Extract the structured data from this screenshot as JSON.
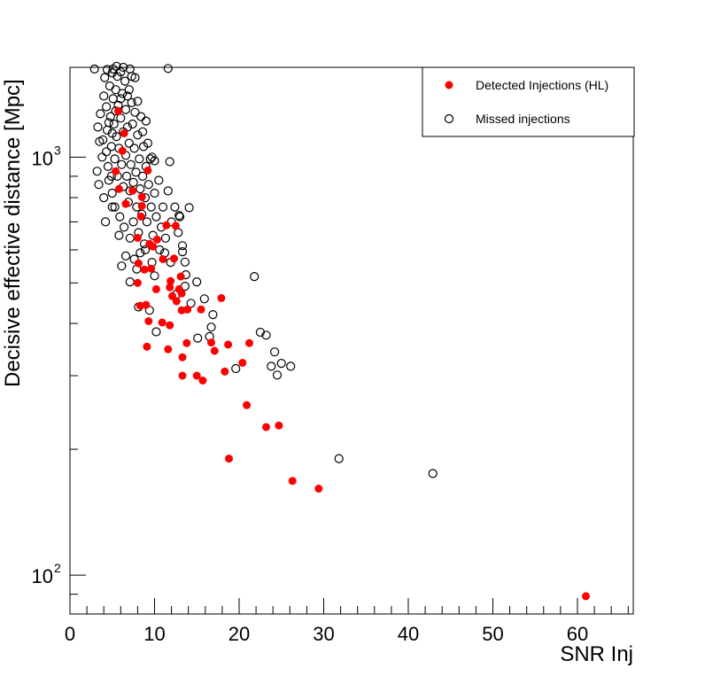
{
  "chart_data": {
    "type": "scatter",
    "title": "",
    "xlabel": "SNR Inj",
    "ylabel": "Decisive effective distance [Mpc]",
    "xlim": [
      0,
      66.6
    ],
    "ylim": [
      80.7,
      1640
    ],
    "yscale": "log",
    "grid": false,
    "legend_position": "top-right",
    "x_ticks": [
      "0",
      "10",
      "20",
      "30",
      "40",
      "50",
      "60"
    ],
    "x_tick_values": [
      0,
      10,
      20,
      30,
      40,
      50,
      60
    ],
    "y_ticks": [
      {
        "base": "10",
        "exp": "2",
        "value": 100
      },
      {
        "base": "10",
        "exp": "3",
        "value": 1000
      }
    ],
    "series": [
      {
        "name": "Detected Injections (HL)",
        "marker": "filled-circle",
        "color": "#ff0000",
        "points": [
          [
            61,
            89
          ],
          [
            29.4,
            161
          ],
          [
            26.3,
            168
          ],
          [
            18.8,
            190
          ],
          [
            23.2,
            226
          ],
          [
            24.7,
            228
          ],
          [
            20.9,
            255
          ],
          [
            18.3,
            307
          ],
          [
            20.4,
            322
          ],
          [
            15.7,
            292
          ],
          [
            15.0,
            300
          ],
          [
            13.3,
            300
          ],
          [
            13.3,
            332
          ],
          [
            11.6,
            347
          ],
          [
            9.1,
            352
          ],
          [
            13.8,
            359
          ],
          [
            17.1,
            344
          ],
          [
            18.7,
            356
          ],
          [
            21.2,
            359
          ],
          [
            16.7,
            360
          ],
          [
            10.9,
            402
          ],
          [
            11.8,
            396
          ],
          [
            9.3,
            405
          ],
          [
            13.9,
            432
          ],
          [
            15.5,
            432
          ],
          [
            13.2,
            430
          ],
          [
            17.9,
            460
          ],
          [
            12.6,
            452
          ],
          [
            9.0,
            443
          ],
          [
            8.3,
            441
          ],
          [
            13.2,
            472
          ],
          [
            12.9,
            483
          ],
          [
            10.2,
            483
          ],
          [
            11.8,
            488
          ],
          [
            13.1,
            518
          ],
          [
            8.0,
            500
          ],
          [
            9.6,
            541
          ],
          [
            11.0,
            570
          ],
          [
            12.3,
            572
          ],
          [
            8.1,
            557
          ],
          [
            8.8,
            538
          ],
          [
            9.8,
            611
          ],
          [
            10.3,
            635
          ],
          [
            9.4,
            620
          ],
          [
            11.4,
            687
          ],
          [
            12.5,
            685
          ],
          [
            8.0,
            641
          ],
          [
            8.4,
            721
          ],
          [
            6.6,
            773
          ],
          [
            8.5,
            764
          ],
          [
            5.4,
            925
          ],
          [
            5.8,
            839
          ],
          [
            8.5,
            803
          ],
          [
            6.2,
            1035
          ],
          [
            6.4,
            1140
          ],
          [
            5.7,
            1289
          ],
          [
            7.4,
            831
          ],
          [
            9.2,
            929
          ],
          [
            11.9,
            505
          ],
          [
            12.1,
            465
          ]
        ]
      },
      {
        "name": "Missed injections",
        "marker": "open-circle",
        "color": "#000000",
        "points": [
          [
            42.9,
            175
          ],
          [
            31.8,
            190
          ],
          [
            21.8,
            518
          ],
          [
            22.5,
            381
          ],
          [
            23.2,
            375
          ],
          [
            24.2,
            342
          ],
          [
            23.8,
            316
          ],
          [
            25.0,
            321
          ],
          [
            26.1,
            316
          ],
          [
            24.5,
            301
          ],
          [
            19.6,
            312
          ],
          [
            16.9,
            420
          ],
          [
            16.7,
            392
          ],
          [
            16.5,
            372
          ],
          [
            15.9,
            458
          ],
          [
            15.0,
            503
          ],
          [
            13.6,
            491
          ],
          [
            13.7,
            523
          ],
          [
            11.6,
            1630
          ],
          [
            11.8,
            975
          ],
          [
            14.1,
            757
          ],
          [
            12.9,
            725
          ],
          [
            10.2,
            382
          ],
          [
            8.1,
            438
          ],
          [
            6.1,
            549
          ],
          [
            7.1,
            503
          ],
          [
            10.0,
            520
          ],
          [
            13.3,
            614
          ],
          [
            13.3,
            594
          ],
          [
            13.6,
            561
          ],
          [
            9.4,
            430
          ],
          [
            11.9,
            560
          ],
          [
            12.6,
            470
          ],
          [
            14.3,
            447
          ],
          [
            15.1,
            369
          ],
          [
            2.9,
            1625
          ],
          [
            5.1,
            1625
          ],
          [
            7.1,
            1625
          ],
          [
            4.2,
            700
          ],
          [
            3.2,
            925
          ],
          [
            3.6,
            1270
          ],
          [
            3.3,
            1180
          ],
          [
            3.5,
            1090
          ],
          [
            3.8,
            1000
          ],
          [
            4.0,
            1400
          ],
          [
            4.1,
            1550
          ],
          [
            4.3,
            1320
          ],
          [
            4.4,
            1160
          ],
          [
            4.5,
            950
          ],
          [
            4.6,
            880
          ],
          [
            4.7,
            1480
          ],
          [
            4.8,
            1250
          ],
          [
            4.9,
            1060
          ],
          [
            5.0,
            820
          ],
          [
            5.0,
            1590
          ],
          [
            5.1,
            1380
          ],
          [
            5.2,
            1200
          ],
          [
            5.3,
            990
          ],
          [
            5.3,
            760
          ],
          [
            5.4,
            1450
          ],
          [
            5.5,
            1120
          ],
          [
            5.6,
            900
          ],
          [
            5.6,
            1560
          ],
          [
            5.7,
            1330
          ],
          [
            5.8,
            1050
          ],
          [
            5.9,
            720
          ],
          [
            6.0,
            1600
          ],
          [
            6.0,
            1240
          ],
          [
            6.1,
            960
          ],
          [
            6.2,
            1420
          ],
          [
            6.3,
            850
          ],
          [
            6.3,
            1150
          ],
          [
            6.4,
            680
          ],
          [
            6.5,
            1520
          ],
          [
            6.6,
            1300
          ],
          [
            6.6,
            1010
          ],
          [
            6.7,
            900
          ],
          [
            6.8,
            1180
          ],
          [
            6.9,
            780
          ],
          [
            7.0,
            1450
          ],
          [
            7.0,
            1080
          ],
          [
            7.1,
            640
          ],
          [
            7.2,
            960
          ],
          [
            7.3,
            1350
          ],
          [
            7.4,
            1200
          ],
          [
            7.5,
            870
          ],
          [
            7.5,
            700
          ],
          [
            7.6,
            1050
          ],
          [
            7.7,
            1550
          ],
          [
            7.8,
            920
          ],
          [
            7.9,
            760
          ],
          [
            8.0,
            1130
          ],
          [
            8.1,
            660
          ],
          [
            8.2,
            990
          ],
          [
            8.3,
            840
          ],
          [
            8.4,
            1250
          ],
          [
            8.5,
            730
          ],
          [
            8.6,
            900
          ],
          [
            8.7,
            1060
          ],
          [
            8.8,
            620
          ],
          [
            8.9,
            800
          ],
          [
            9.0,
            950
          ],
          [
            9.1,
            700
          ],
          [
            9.3,
            860
          ],
          [
            9.5,
            990
          ],
          [
            9.6,
            760
          ],
          [
            9.8,
            650
          ],
          [
            10.0,
            820
          ],
          [
            10.2,
            720
          ],
          [
            10.5,
            880
          ],
          [
            10.8,
            680
          ],
          [
            11.0,
            760
          ],
          [
            11.3,
            640
          ],
          [
            11.6,
            830
          ],
          [
            12.0,
            700
          ],
          [
            12.4,
            760
          ],
          [
            12.8,
            660
          ],
          [
            13.0,
            720
          ],
          [
            6.0,
            1380
          ],
          [
            5.4,
            1290
          ],
          [
            4.6,
            1210
          ],
          [
            3.9,
            1100
          ],
          [
            4.3,
            1030
          ],
          [
            5.0,
            1140
          ],
          [
            6.8,
            1400
          ],
          [
            7.3,
            1560
          ],
          [
            8.0,
            1360
          ],
          [
            8.6,
            1150
          ],
          [
            9.2,
            1080
          ],
          [
            9.7,
            1000
          ],
          [
            10.0,
            980
          ],
          [
            9.0,
            1220
          ],
          [
            7.7,
            1280
          ],
          [
            5.5,
            1650
          ],
          [
            6.3,
            1640
          ],
          [
            4.4,
            1620
          ],
          [
            6.6,
            580
          ],
          [
            7.6,
            570
          ],
          [
            8.3,
            590
          ],
          [
            5.0,
            760
          ],
          [
            5.8,
            650
          ],
          [
            7.1,
            830
          ],
          [
            4.9,
            900
          ],
          [
            3.4,
            860
          ],
          [
            4.0,
            800
          ],
          [
            7.9,
            540
          ],
          [
            8.9,
            600
          ],
          [
            9.7,
            560
          ],
          [
            10.6,
            600
          ],
          [
            11.2,
            590
          ]
        ]
      }
    ]
  }
}
